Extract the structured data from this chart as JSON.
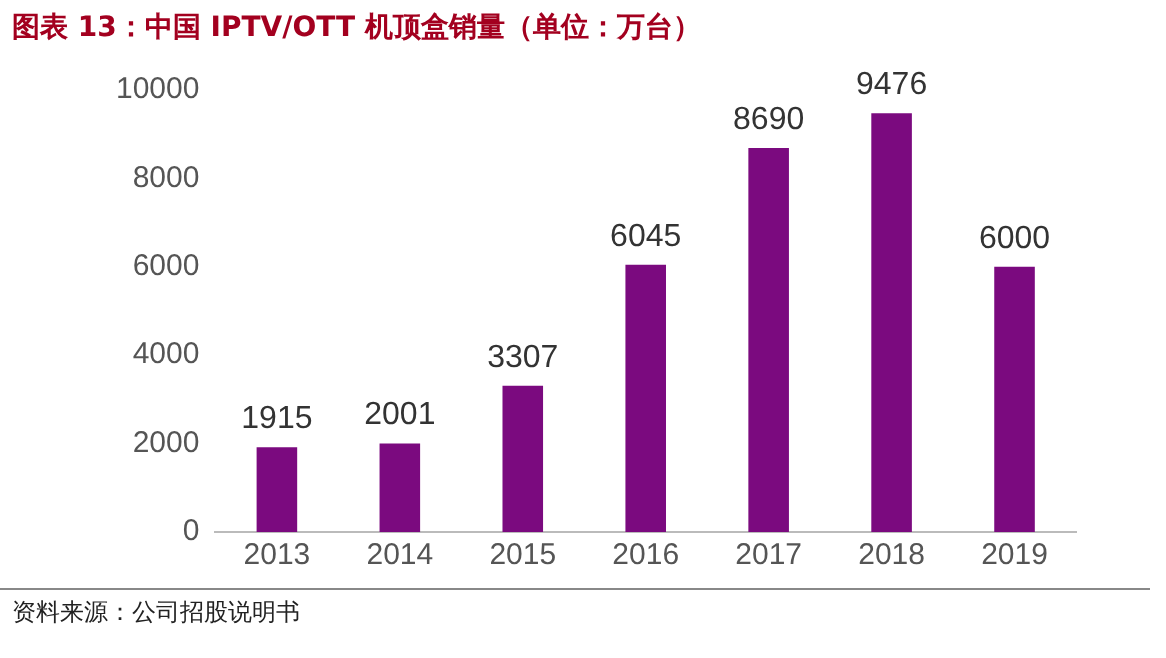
{
  "chart_data": {
    "type": "bar",
    "title": "图表 13：中国 IPTV/OTT 机顶盒销量（单位：万台）",
    "categories": [
      "2013",
      "2014",
      "2015",
      "2016",
      "2017",
      "2018",
      "2019"
    ],
    "values": [
      1915,
      2001,
      3307,
      6045,
      8690,
      9476,
      6000
    ],
    "color": "#7b0a7f",
    "ylim": [
      0,
      10000
    ],
    "yticks": [
      0,
      2000,
      4000,
      6000,
      8000,
      10000
    ],
    "grid": false,
    "legend": false,
    "data_labels": true,
    "annotations": [
      "资料来源：公司招股说明书"
    ]
  }
}
